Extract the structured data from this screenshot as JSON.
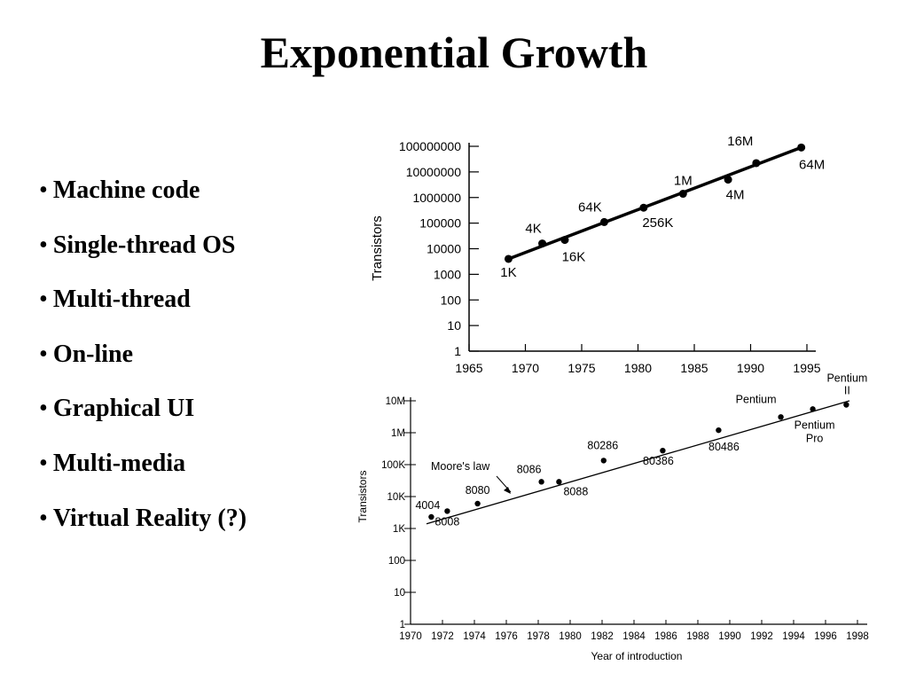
{
  "slide": {
    "title": "Exponential Growth",
    "bullets": [
      "Machine code",
      "Single-thread OS",
      "Multi-thread",
      "On-line",
      "Graphical UI",
      "Multi-media",
      "Virtual Reality (?)"
    ]
  },
  "chart_data": [
    {
      "type": "scatter",
      "ylabel": "Transistors",
      "xlabel": "",
      "yscale": "log",
      "ylim": [
        1,
        100000000
      ],
      "xlim": [
        1965,
        1995
      ],
      "x_ticks": [
        1965,
        1970,
        1975,
        1980,
        1985,
        1990,
        1995
      ],
      "y_ticks": [
        "1",
        "10",
        "100",
        "1000",
        "10000",
        "100000",
        "1000000",
        "10000000",
        "100000000"
      ],
      "points": [
        {
          "label": "1K",
          "x": 1968.5,
          "y": 4000
        },
        {
          "label": "4K",
          "x": 1971.5,
          "y": 16000
        },
        {
          "label": "16K",
          "x": 1973.5,
          "y": 22000
        },
        {
          "label": "64K",
          "x": 1977,
          "y": 110000
        },
        {
          "label": "256K",
          "x": 1980.5,
          "y": 400000
        },
        {
          "label": "1M",
          "x": 1984,
          "y": 1400000
        },
        {
          "label": "4M",
          "x": 1988,
          "y": 5000000
        },
        {
          "label": "16M",
          "x": 1990.5,
          "y": 22000000
        },
        {
          "label": "64M",
          "x": 1994.5,
          "y": 90000000
        }
      ],
      "trend_line": [
        [
          1968.5,
          4000
        ],
        [
          1994.5,
          90000000
        ]
      ],
      "grid": false,
      "legend": "none"
    },
    {
      "type": "scatter",
      "ylabel": "Transistors",
      "xlabel": "Year of introduction",
      "yscale": "log",
      "ylim": [
        1,
        10000000
      ],
      "xlim": [
        1970,
        1998
      ],
      "x_ticks": [
        1970,
        1972,
        1974,
        1976,
        1978,
        1980,
        1982,
        1984,
        1986,
        1988,
        1990,
        1992,
        1994,
        1996,
        1998
      ],
      "y_ticks": [
        "1",
        "10",
        "100",
        "1K",
        "10K",
        "100K",
        "1M",
        "10M"
      ],
      "points": [
        {
          "label": "4004",
          "x": 1971.3,
          "y": 2300
        },
        {
          "label": "8008",
          "x": 1972.3,
          "y": 3500
        },
        {
          "label": "8080",
          "x": 1974.2,
          "y": 6000
        },
        {
          "label": "8086",
          "x": 1978.2,
          "y": 29000
        },
        {
          "label": "8088",
          "x": 1979.3,
          "y": 29000
        },
        {
          "label": "80286",
          "x": 1982.1,
          "y": 134000
        },
        {
          "label": "80386",
          "x": 1985.8,
          "y": 275000
        },
        {
          "label": "80486",
          "x": 1989.3,
          "y": 1200000
        },
        {
          "label": "Pentium",
          "x": 1993.2,
          "y": 3100000
        },
        {
          "label": "Pentium Pro",
          "x": 1995.2,
          "y": 5500000
        },
        {
          "label": "Pentium II",
          "x": 1997.3,
          "y": 7500000
        }
      ],
      "annotation": "Moore's law",
      "trend_line": [
        [
          1971,
          1400
        ],
        [
          1997.5,
          10000000
        ]
      ],
      "grid": false,
      "legend": "none"
    }
  ]
}
